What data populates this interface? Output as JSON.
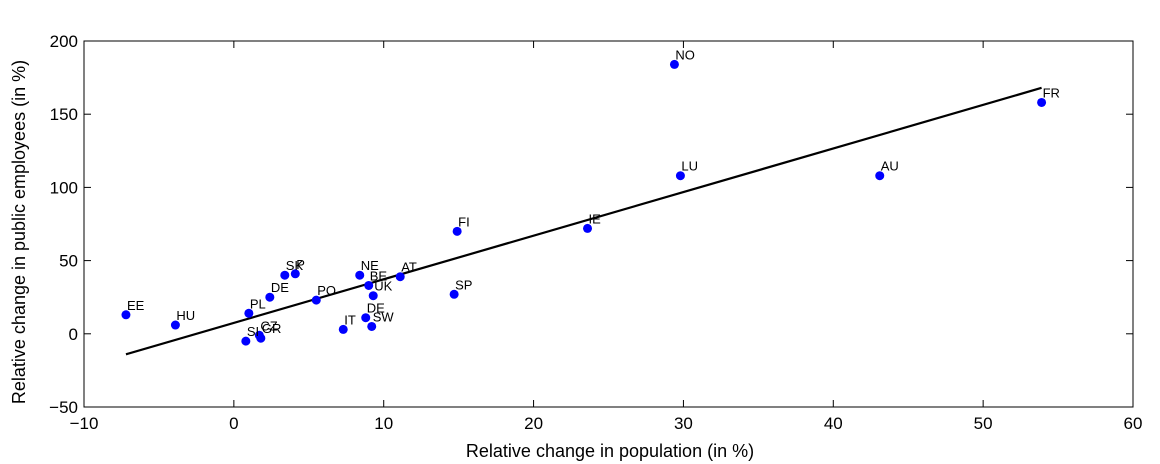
{
  "chart_data": {
    "type": "scatter",
    "xlabel": "Relative change in population (in %)",
    "ylabel": "Relative change in public employees (in %)",
    "xlim": [
      -10,
      60
    ],
    "ylim": [
      -50,
      200
    ],
    "xticks": [
      -10,
      0,
      10,
      20,
      30,
      40,
      50,
      60
    ],
    "yticks": [
      -50,
      0,
      50,
      100,
      150,
      200
    ],
    "xtick_labels": [
      "−10",
      "0",
      "10",
      "20",
      "30",
      "40",
      "50",
      "60"
    ],
    "ytick_labels": [
      "−50",
      "0",
      "50",
      "100",
      "150",
      "200"
    ],
    "grid": false,
    "point_color": "#0000ff",
    "line_color": "#000000",
    "points": [
      {
        "label": "EE",
        "x": -7.2,
        "y": 13
      },
      {
        "label": "HU",
        "x": -3.9,
        "y": 6
      },
      {
        "label": "SI",
        "x": 0.8,
        "y": -5
      },
      {
        "label": "CZ",
        "x": 1.7,
        "y": -1
      },
      {
        "label": "GR",
        "x": 1.8,
        "y": -3
      },
      {
        "label": "PL",
        "x": 1.0,
        "y": 14
      },
      {
        "label": "DE",
        "x": 2.4,
        "y": 25
      },
      {
        "label": "SK",
        "x": 3.4,
        "y": 40
      },
      {
        "label": "P",
        "x": 4.1,
        "y": 41
      },
      {
        "label": "PO",
        "x": 5.5,
        "y": 23
      },
      {
        "label": "IT",
        "x": 7.3,
        "y": 3
      },
      {
        "label": "NE",
        "x": 8.4,
        "y": 40
      },
      {
        "label": "DE",
        "x": 8.8,
        "y": 11
      },
      {
        "label": "BE",
        "x": 9.0,
        "y": 33
      },
      {
        "label": "UK",
        "x": 9.3,
        "y": 26
      },
      {
        "label": "SW",
        "x": 9.2,
        "y": 5
      },
      {
        "label": "AT",
        "x": 11.1,
        "y": 39
      },
      {
        "label": "SP",
        "x": 14.7,
        "y": 27
      },
      {
        "label": "FI",
        "x": 14.9,
        "y": 70
      },
      {
        "label": "IE",
        "x": 23.6,
        "y": 72
      },
      {
        "label": "NO",
        "x": 29.4,
        "y": 184
      },
      {
        "label": "LU",
        "x": 29.8,
        "y": 108
      },
      {
        "label": "AU",
        "x": 43.1,
        "y": 108
      },
      {
        "label": "FR",
        "x": 53.9,
        "y": 158
      }
    ],
    "fit_line": {
      "x": [
        -7.2,
        53.9
      ],
      "y": [
        -14,
        168
      ]
    }
  }
}
